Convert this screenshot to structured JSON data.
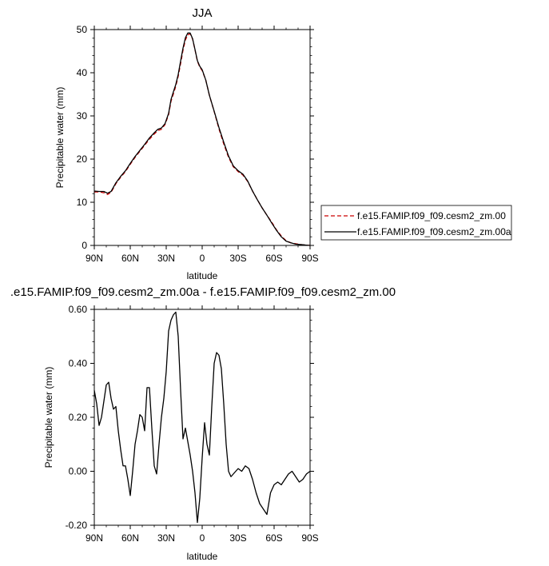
{
  "chart_data": [
    {
      "type": "line",
      "title": "JJA",
      "xlabel": "latitude",
      "ylabel": "Precipitable water (mm)",
      "ylim": [
        0,
        50
      ],
      "yticks": [
        0,
        10,
        20,
        30,
        40,
        50
      ],
      "xticks": [
        "90N",
        "60N",
        "30N",
        "0",
        "30S",
        "60S",
        "90S"
      ],
      "x_note_values": [
        90,
        60,
        30,
        0,
        -30,
        -60,
        -90
      ],
      "legend_position": "right",
      "series": [
        {
          "name": "f.e15.FAMIP.f09_f09.cesm2_zm.00",
          "color": "#cc0000",
          "dash": "dashed",
          "x": [
            90,
            86,
            82,
            79,
            76,
            72,
            68,
            64,
            60,
            56,
            52,
            48,
            44,
            40,
            37,
            34,
            31,
            28,
            26,
            24,
            22,
            20,
            18,
            16,
            14,
            12,
            10,
            8,
            6,
            4,
            2,
            0,
            -3,
            -6,
            -10,
            -14,
            -18,
            -22,
            -26,
            -30,
            -34,
            -38,
            -42,
            -46,
            -50,
            -54,
            -58,
            -62,
            -66,
            -70,
            -74,
            -78,
            -82,
            -86,
            -90
          ],
          "values": [
            12.4,
            12.4,
            12.2,
            11.8,
            12.3,
            14.3,
            15.8,
            17.1,
            18.8,
            20.4,
            21.8,
            23.2,
            24.6,
            25.8,
            26.6,
            26.9,
            28.0,
            30.3,
            33.4,
            35.1,
            36.9,
            39.2,
            42.1,
            45.2,
            47.6,
            48.8,
            49.0,
            47.8,
            45.3,
            42.7,
            41.3,
            40.5,
            38.3,
            34.8,
            31.0,
            27.0,
            23.5,
            20.4,
            18.2,
            17.1,
            16.3,
            14.8,
            12.6,
            10.6,
            8.7,
            7.0,
            5.4,
            3.6,
            2.2,
            1.1,
            0.6,
            0.4,
            0.2,
            0.1,
            0.0
          ]
        },
        {
          "name": "f.e15.FAMIP.f09_f09.cesm2_zm.00a",
          "color": "#000000",
          "dash": "solid",
          "x": [
            90,
            86,
            82,
            79,
            76,
            72,
            68,
            64,
            60,
            56,
            52,
            48,
            44,
            40,
            37,
            34,
            31,
            28,
            26,
            24,
            22,
            20,
            18,
            16,
            14,
            12,
            10,
            8,
            6,
            4,
            2,
            0,
            -3,
            -6,
            -10,
            -14,
            -18,
            -22,
            -26,
            -30,
            -34,
            -38,
            -42,
            -46,
            -50,
            -54,
            -58,
            -62,
            -66,
            -70,
            -74,
            -78,
            -82,
            -86,
            -90
          ],
          "values": [
            12.6,
            12.5,
            12.5,
            12.1,
            12.5,
            14.5,
            16.0,
            17.3,
            19.0,
            20.6,
            22.0,
            23.4,
            24.9,
            26.1,
            26.9,
            27.2,
            28.2,
            30.6,
            33.8,
            35.6,
            37.3,
            39.6,
            42.7,
            45.7,
            48.1,
            49.2,
            49.2,
            47.9,
            45.4,
            42.8,
            41.5,
            40.7,
            38.3,
            34.8,
            31.1,
            27.3,
            23.9,
            20.7,
            18.4,
            17.3,
            16.5,
            14.9,
            12.6,
            10.6,
            8.7,
            7.0,
            5.2,
            3.5,
            2.0,
            1.0,
            0.6,
            0.3,
            0.2,
            0.1,
            0.0
          ]
        }
      ]
    },
    {
      "type": "line",
      "title": ".e15.FAMIP.f09_f09.cesm2_zm.00a - f.e15.FAMIP.f09_f09.cesm2_zm.00",
      "xlabel": "latitude",
      "ylabel": "Precipitable water (mm)",
      "ylim": [
        -0.2,
        0.6
      ],
      "yticks": [
        "0.60",
        "0.40",
        "0.20",
        "0.00",
        "-0.20"
      ],
      "ytick_values": [
        0.6,
        0.4,
        0.2,
        0.0,
        -0.2
      ],
      "xticks": [
        "90N",
        "60N",
        "30N",
        "0",
        "30S",
        "60S",
        "90S"
      ],
      "series": [
        {
          "color": "#000000",
          "x": [
            90,
            88,
            86,
            84,
            82,
            80,
            78,
            76,
            74,
            72,
            70,
            68,
            66,
            64,
            62,
            60,
            58,
            56,
            54,
            52,
            50,
            48,
            46,
            44,
            42,
            40,
            38,
            36,
            34,
            32,
            30,
            28,
            26,
            24,
            22,
            20,
            18,
            16,
            14,
            12,
            10,
            8,
            6,
            4,
            2,
            0,
            -2,
            -4,
            -6,
            -8,
            -10,
            -12,
            -14,
            -16,
            -18,
            -20,
            -22,
            -24,
            -26,
            -28,
            -30,
            -33,
            -36,
            -39,
            -42,
            -45,
            -48,
            -51,
            -54,
            -57,
            -60,
            -63,
            -66,
            -69,
            -72,
            -75,
            -78,
            -81,
            -84,
            -87,
            -90
          ],
          "values": [
            0.3,
            0.25,
            0.17,
            0.2,
            0.26,
            0.32,
            0.33,
            0.27,
            0.23,
            0.24,
            0.15,
            0.08,
            0.02,
            0.02,
            -0.03,
            -0.09,
            0.0,
            0.1,
            0.15,
            0.21,
            0.2,
            0.15,
            0.31,
            0.31,
            0.16,
            0.02,
            -0.01,
            0.1,
            0.2,
            0.27,
            0.37,
            0.52,
            0.56,
            0.58,
            0.59,
            0.5,
            0.3,
            0.12,
            0.16,
            0.11,
            0.06,
            0.0,
            -0.08,
            -0.19,
            -0.1,
            0.05,
            0.18,
            0.1,
            0.06,
            0.24,
            0.4,
            0.44,
            0.43,
            0.38,
            0.25,
            0.1,
            0.0,
            -0.02,
            -0.01,
            0.0,
            0.01,
            0.0,
            0.02,
            0.01,
            -0.03,
            -0.08,
            -0.12,
            -0.14,
            -0.16,
            -0.08,
            -0.05,
            -0.04,
            -0.05,
            -0.03,
            -0.01,
            0.0,
            -0.02,
            -0.04,
            -0.03,
            -0.01,
            0.0
          ]
        }
      ]
    }
  ]
}
